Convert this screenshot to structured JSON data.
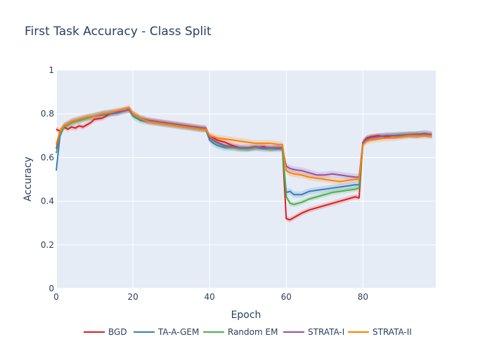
{
  "chart_data": {
    "type": "line",
    "title": "First Task Accuracy - Class Split",
    "xlabel": "Epoch",
    "ylabel": "Accuracy",
    "xlim": [
      0,
      99
    ],
    "ylim": [
      0,
      1
    ],
    "xticks": [
      0,
      20,
      40,
      60,
      80
    ],
    "yticks": [
      0,
      0.2,
      0.4,
      0.6,
      0.8,
      1
    ],
    "ytick_labels": [
      "0",
      "0.2",
      "0.4",
      "0.6",
      "0.8",
      "1"
    ],
    "grid": true,
    "legend_position": "bottom",
    "plot_background": "#e5ecf6",
    "series": [
      {
        "name": "BGD",
        "color": "#e41a1c",
        "x": [
          0,
          1,
          2,
          3,
          4,
          5,
          6,
          7,
          8,
          9,
          10,
          12,
          14,
          16,
          18,
          19,
          20,
          22,
          24,
          26,
          28,
          30,
          32,
          34,
          36,
          38,
          39,
          40,
          41,
          42,
          44,
          46,
          48,
          50,
          52,
          54,
          56,
          58,
          59,
          60,
          61,
          62,
          64,
          66,
          68,
          70,
          72,
          74,
          76,
          78,
          79,
          80,
          81,
          82,
          84,
          86,
          88,
          90,
          92,
          94,
          96,
          98
        ],
        "y": [
          0.73,
          0.72,
          0.74,
          0.73,
          0.74,
          0.735,
          0.745,
          0.74,
          0.75,
          0.76,
          0.775,
          0.78,
          0.8,
          0.805,
          0.82,
          0.82,
          0.8,
          0.78,
          0.77,
          0.765,
          0.76,
          0.755,
          0.75,
          0.745,
          0.74,
          0.735,
          0.73,
          0.7,
          0.69,
          0.68,
          0.67,
          0.655,
          0.645,
          0.64,
          0.645,
          0.65,
          0.64,
          0.645,
          0.64,
          0.32,
          0.315,
          0.325,
          0.345,
          0.36,
          0.37,
          0.38,
          0.39,
          0.4,
          0.41,
          0.42,
          0.415,
          0.67,
          0.69,
          0.695,
          0.7,
          0.695,
          0.7,
          0.7,
          0.705,
          0.7,
          0.705,
          0.7
        ],
        "band": 0.012
      },
      {
        "name": "TA-A-GEM",
        "color": "#377eb8",
        "x": [
          0,
          1,
          2,
          3,
          4,
          5,
          6,
          8,
          10,
          12,
          14,
          16,
          18,
          19,
          20,
          22,
          24,
          26,
          28,
          30,
          32,
          34,
          36,
          38,
          39,
          40,
          41,
          42,
          44,
          46,
          48,
          50,
          52,
          54,
          56,
          58,
          59,
          60,
          61,
          62,
          64,
          66,
          68,
          70,
          72,
          74,
          76,
          78,
          79,
          80,
          81,
          82,
          84,
          86,
          88,
          90,
          92,
          94,
          96,
          98
        ],
        "y": [
          0.54,
          0.7,
          0.74,
          0.75,
          0.76,
          0.765,
          0.77,
          0.78,
          0.79,
          0.795,
          0.8,
          0.805,
          0.815,
          0.82,
          0.79,
          0.77,
          0.765,
          0.76,
          0.755,
          0.75,
          0.745,
          0.74,
          0.735,
          0.73,
          0.73,
          0.68,
          0.665,
          0.655,
          0.645,
          0.645,
          0.64,
          0.64,
          0.645,
          0.64,
          0.64,
          0.64,
          0.64,
          0.44,
          0.445,
          0.43,
          0.43,
          0.445,
          0.45,
          0.455,
          0.46,
          0.465,
          0.47,
          0.475,
          0.475,
          0.67,
          0.685,
          0.69,
          0.695,
          0.7,
          0.7,
          0.705,
          0.705,
          0.705,
          0.71,
          0.705
        ],
        "band": 0.015
      },
      {
        "name": "Random EM",
        "color": "#4daf4a",
        "x": [
          0,
          1,
          2,
          3,
          4,
          5,
          6,
          8,
          10,
          12,
          14,
          16,
          18,
          19,
          20,
          22,
          24,
          26,
          28,
          30,
          32,
          34,
          36,
          38,
          39,
          40,
          41,
          42,
          44,
          46,
          48,
          50,
          52,
          54,
          56,
          58,
          59,
          60,
          61,
          62,
          64,
          66,
          68,
          70,
          72,
          74,
          76,
          78,
          79,
          80,
          81,
          82,
          84,
          86,
          88,
          90,
          92,
          94,
          96,
          98
        ],
        "y": [
          0.62,
          0.71,
          0.74,
          0.75,
          0.76,
          0.765,
          0.77,
          0.78,
          0.79,
          0.8,
          0.805,
          0.81,
          0.82,
          0.82,
          0.795,
          0.775,
          0.765,
          0.76,
          0.755,
          0.75,
          0.745,
          0.74,
          0.735,
          0.73,
          0.73,
          0.69,
          0.675,
          0.665,
          0.65,
          0.645,
          0.64,
          0.64,
          0.645,
          0.645,
          0.64,
          0.645,
          0.64,
          0.42,
          0.39,
          0.385,
          0.395,
          0.41,
          0.42,
          0.43,
          0.44,
          0.445,
          0.45,
          0.455,
          0.46,
          0.66,
          0.68,
          0.69,
          0.695,
          0.7,
          0.7,
          0.705,
          0.705,
          0.71,
          0.705,
          0.705
        ],
        "band": 0.012
      },
      {
        "name": "STRATA-I",
        "color": "#984ea3",
        "x": [
          0,
          1,
          2,
          3,
          4,
          5,
          6,
          8,
          10,
          12,
          14,
          16,
          18,
          19,
          20,
          22,
          24,
          26,
          28,
          30,
          32,
          34,
          36,
          38,
          39,
          40,
          41,
          42,
          44,
          46,
          48,
          50,
          52,
          54,
          56,
          58,
          59,
          60,
          61,
          62,
          64,
          66,
          68,
          70,
          72,
          74,
          76,
          78,
          79,
          80,
          81,
          82,
          84,
          86,
          88,
          90,
          92,
          94,
          96,
          98
        ],
        "y": [
          0.64,
          0.72,
          0.745,
          0.755,
          0.765,
          0.77,
          0.775,
          0.785,
          0.79,
          0.8,
          0.805,
          0.81,
          0.815,
          0.82,
          0.8,
          0.78,
          0.77,
          0.765,
          0.76,
          0.755,
          0.75,
          0.745,
          0.74,
          0.735,
          0.735,
          0.69,
          0.68,
          0.67,
          0.655,
          0.65,
          0.645,
          0.645,
          0.65,
          0.645,
          0.645,
          0.645,
          0.645,
          0.56,
          0.55,
          0.545,
          0.54,
          0.53,
          0.52,
          0.52,
          0.525,
          0.52,
          0.515,
          0.51,
          0.51,
          0.67,
          0.685,
          0.69,
          0.695,
          0.7,
          0.7,
          0.7,
          0.705,
          0.705,
          0.71,
          0.705
        ],
        "band": 0.015
      },
      {
        "name": "STRATA-II",
        "color": "#ff7f00",
        "x": [
          0,
          1,
          2,
          3,
          4,
          5,
          6,
          8,
          10,
          12,
          14,
          16,
          18,
          19,
          20,
          22,
          24,
          26,
          28,
          30,
          32,
          34,
          36,
          38,
          39,
          40,
          41,
          42,
          44,
          46,
          48,
          50,
          52,
          54,
          56,
          58,
          59,
          60,
          61,
          62,
          64,
          66,
          68,
          70,
          72,
          74,
          76,
          78,
          79,
          80,
          81,
          82,
          84,
          86,
          88,
          90,
          92,
          94,
          96,
          98
        ],
        "y": [
          0.66,
          0.72,
          0.745,
          0.755,
          0.765,
          0.77,
          0.775,
          0.785,
          0.79,
          0.8,
          0.805,
          0.815,
          0.82,
          0.83,
          0.8,
          0.78,
          0.765,
          0.76,
          0.755,
          0.75,
          0.745,
          0.74,
          0.735,
          0.73,
          0.73,
          0.7,
          0.695,
          0.69,
          0.685,
          0.68,
          0.675,
          0.67,
          0.665,
          0.665,
          0.665,
          0.66,
          0.66,
          0.54,
          0.53,
          0.525,
          0.52,
          0.51,
          0.505,
          0.5,
          0.495,
          0.49,
          0.495,
          0.5,
          0.5,
          0.66,
          0.675,
          0.68,
          0.685,
          0.69,
          0.69,
          0.695,
          0.7,
          0.7,
          0.7,
          0.7
        ],
        "band": 0.015
      }
    ]
  }
}
